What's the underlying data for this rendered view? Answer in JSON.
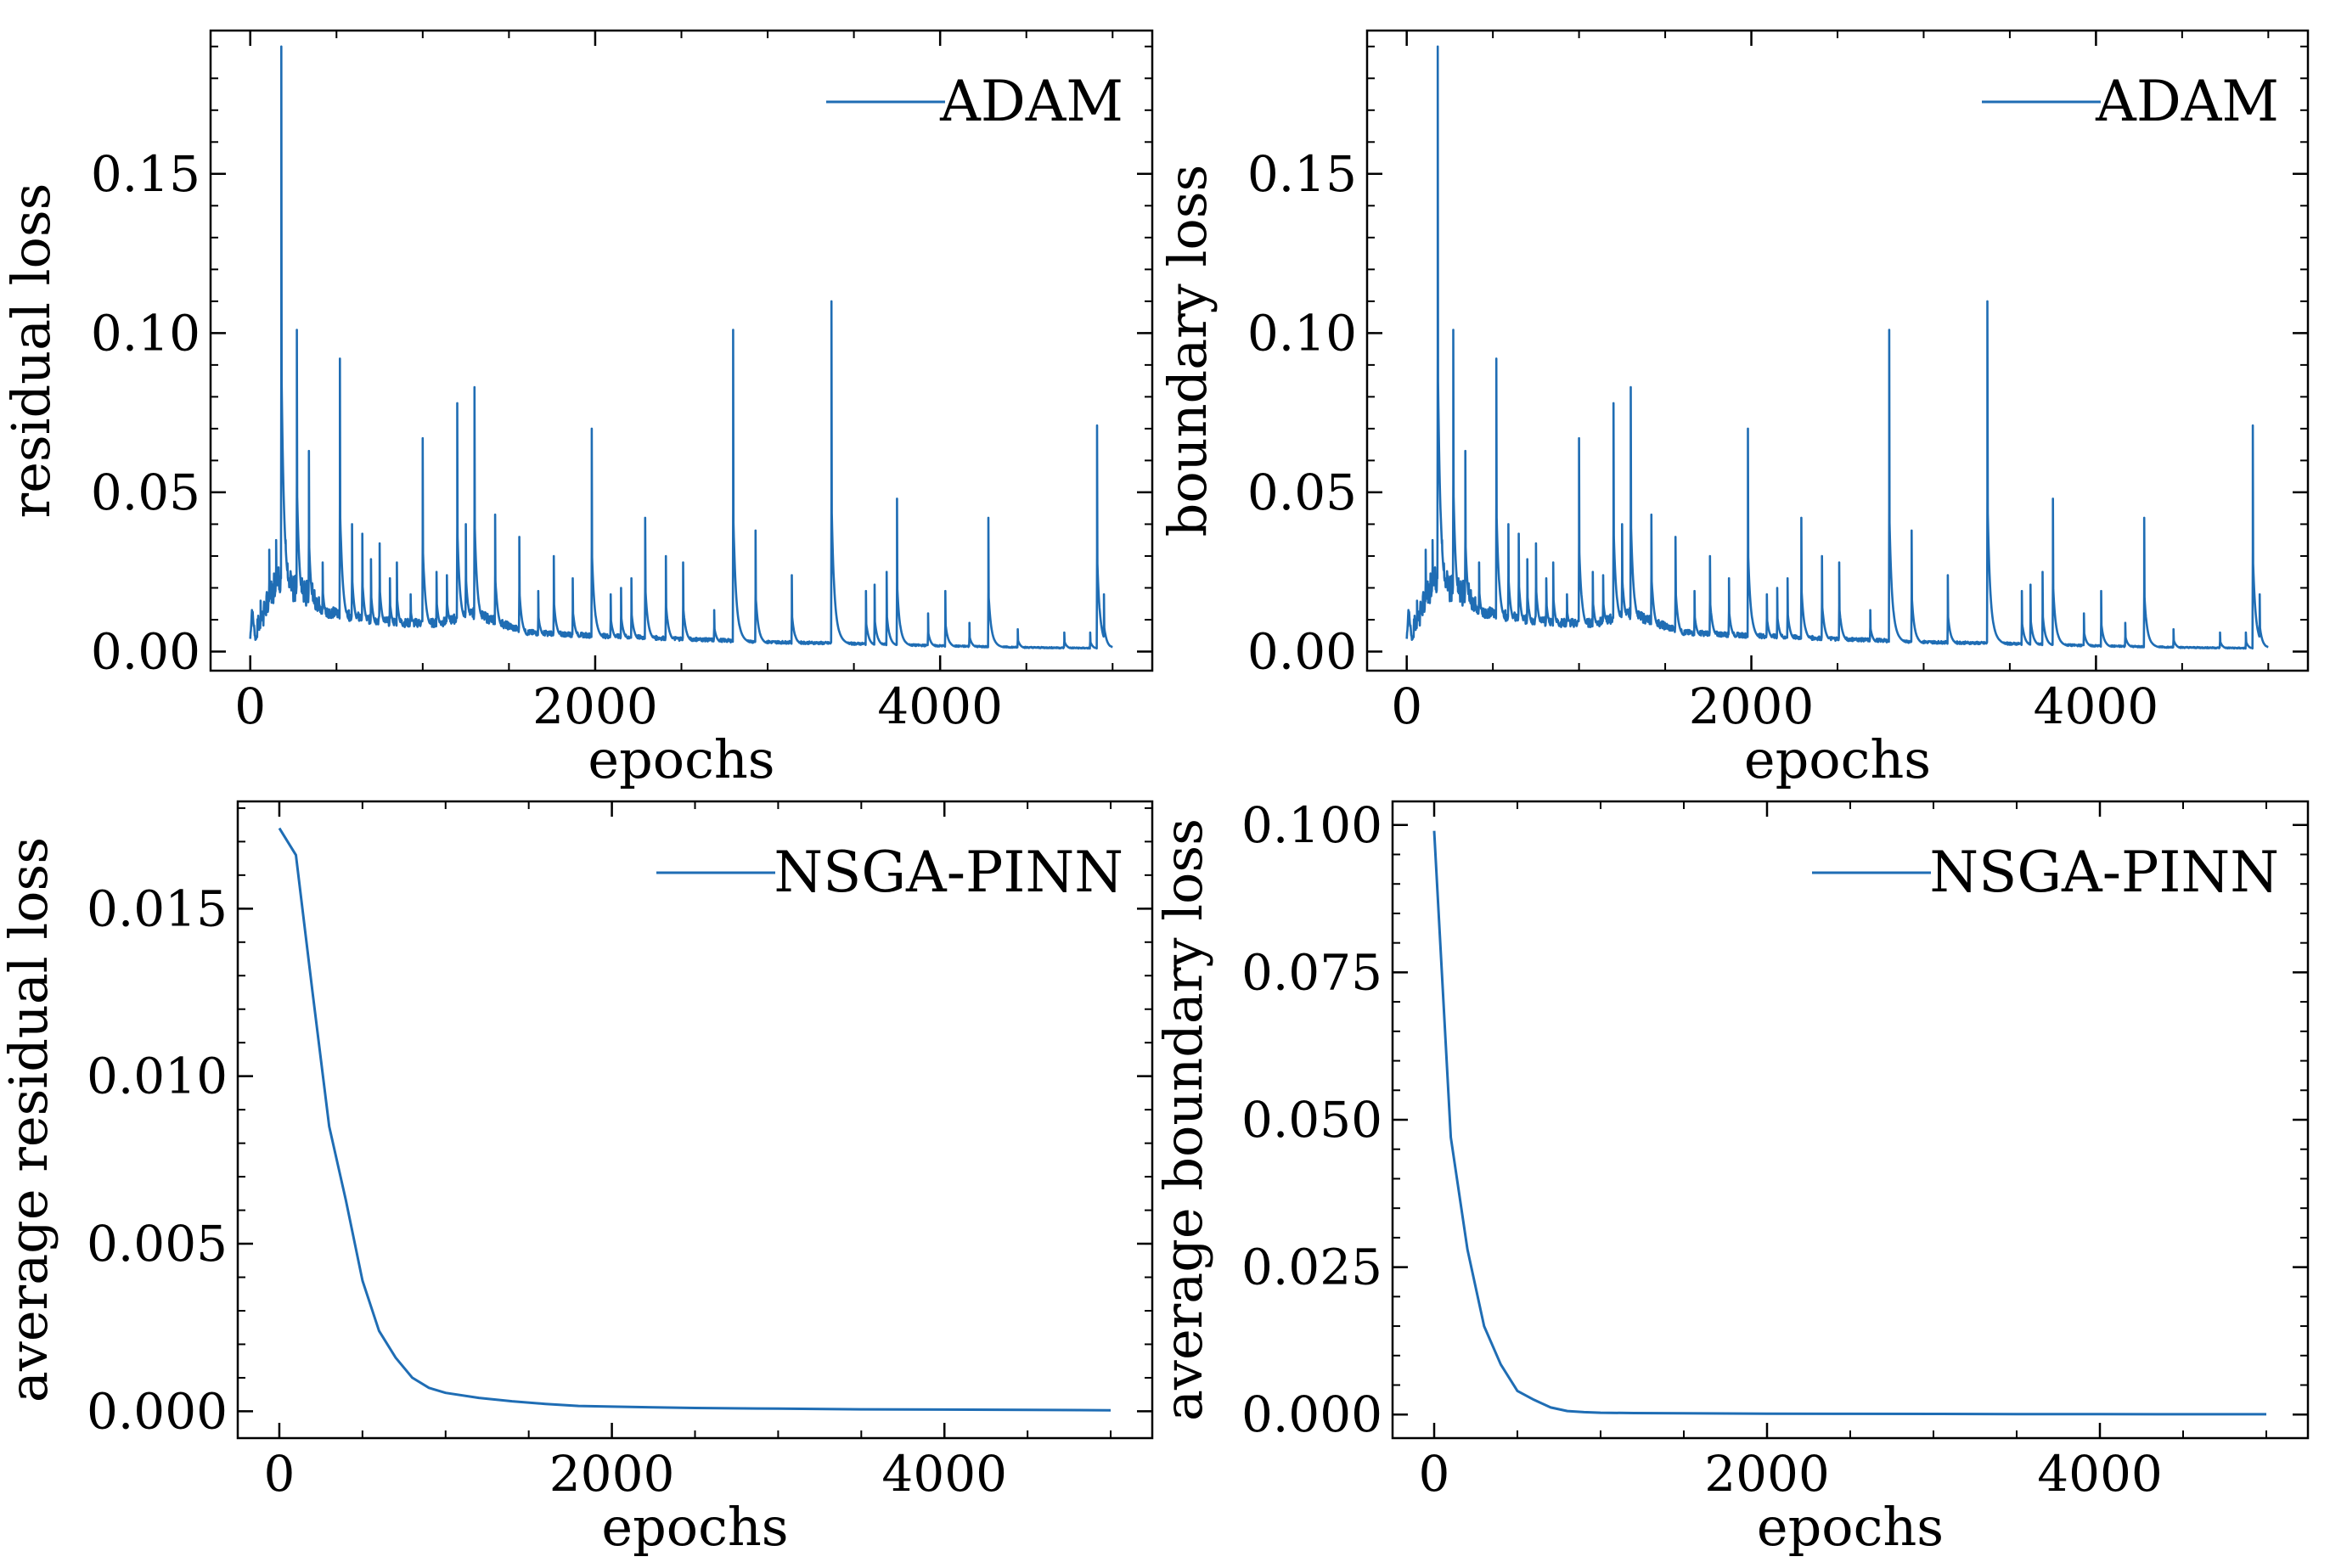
{
  "figure": {
    "colors": {
      "line": "#1f6db4",
      "axes": "#000000",
      "background": "#ffffff"
    }
  },
  "chart_data": [
    {
      "type": "line",
      "position": "top-left",
      "xlabel": "epochs",
      "ylabel": "residual loss",
      "xlim": [
        -230,
        5230
      ],
      "ylim": [
        -0.006,
        0.195
      ],
      "xticks": [
        0,
        2000,
        4000
      ],
      "xtick_labels": [
        "0",
        "2000",
        "4000"
      ],
      "yticks": [
        0.0,
        0.05,
        0.1,
        0.15
      ],
      "ytick_labels": [
        "0.00",
        "0.05",
        "0.10",
        "0.15"
      ],
      "legend": {
        "label": "ADAM",
        "loc": "upper right"
      },
      "series": [
        {
          "name": "ADAM",
          "x": [
            0,
            10,
            30,
            60,
            100,
            140,
            170,
            200,
            250,
            300,
            400,
            500,
            700,
            900,
            1100,
            1300,
            1400,
            1600,
            2000,
            2500,
            3000,
            3500,
            4000,
            4500,
            5000
          ],
          "values": [
            0.004,
            0.013,
            0.004,
            0.007,
            0.012,
            0.018,
            0.02,
            0.022,
            0.018,
            0.016,
            0.013,
            0.012,
            0.01,
            0.009,
            0.009,
            0.012,
            0.01,
            0.006,
            0.005,
            0.004,
            0.003,
            0.0025,
            0.0018,
            0.0013,
            0.001
          ],
          "spikes": [
            [
              60,
              0.016
            ],
            [
              110,
              0.032
            ],
            [
              150,
              0.035
            ],
            [
              180,
              0.19
            ],
            [
              205,
              0.035
            ],
            [
              270,
              0.101
            ],
            [
              300,
              0.023
            ],
            [
              340,
              0.063
            ],
            [
              420,
              0.028
            ],
            [
              520,
              0.092
            ],
            [
              590,
              0.04
            ],
            [
              650,
              0.037
            ],
            [
              700,
              0.029
            ],
            [
              750,
              0.034
            ],
            [
              810,
              0.023
            ],
            [
              850,
              0.028
            ],
            [
              930,
              0.018
            ],
            [
              1000,
              0.067
            ],
            [
              1080,
              0.025
            ],
            [
              1140,
              0.024
            ],
            [
              1200,
              0.078
            ],
            [
              1250,
              0.04
            ],
            [
              1300,
              0.083
            ],
            [
              1420,
              0.043
            ],
            [
              1560,
              0.036
            ],
            [
              1670,
              0.019
            ],
            [
              1760,
              0.03
            ],
            [
              1870,
              0.023
            ],
            [
              1980,
              0.07
            ],
            [
              2090,
              0.018
            ],
            [
              2150,
              0.02
            ],
            [
              2210,
              0.023
            ],
            [
              2290,
              0.042
            ],
            [
              2410,
              0.03
            ],
            [
              2510,
              0.028
            ],
            [
              2690,
              0.013
            ],
            [
              2800,
              0.101
            ],
            [
              2930,
              0.038
            ],
            [
              3140,
              0.024
            ],
            [
              3370,
              0.11
            ],
            [
              3570,
              0.019
            ],
            [
              3620,
              0.021
            ],
            [
              3690,
              0.025
            ],
            [
              3750,
              0.048
            ],
            [
              3930,
              0.012
            ],
            [
              4030,
              0.019
            ],
            [
              4170,
              0.009
            ],
            [
              4280,
              0.042
            ],
            [
              4450,
              0.007
            ],
            [
              4720,
              0.006
            ],
            [
              4870,
              0.006
            ],
            [
              4910,
              0.071
            ],
            [
              4950,
              0.018
            ]
          ]
        }
      ]
    },
    {
      "type": "line",
      "position": "top-right",
      "xlabel": "epochs",
      "ylabel": "boundary loss",
      "xlim": [
        -230,
        5230
      ],
      "ylim": [
        -0.006,
        0.195
      ],
      "xticks": [
        0,
        2000,
        4000
      ],
      "xtick_labels": [
        "0",
        "2000",
        "4000"
      ],
      "yticks": [
        0.0,
        0.05,
        0.1,
        0.15
      ],
      "ytick_labels": [
        "0.00",
        "0.05",
        "0.10",
        "0.15"
      ],
      "legend": {
        "label": "ADAM",
        "loc": "upper right"
      },
      "series": [
        {
          "name": "ADAM",
          "x": [
            0,
            10,
            30,
            60,
            100,
            140,
            170,
            200,
            250,
            300,
            400,
            500,
            700,
            900,
            1100,
            1300,
            1400,
            1600,
            2000,
            2500,
            3000,
            3500,
            4000,
            4500,
            5000
          ],
          "values": [
            0.004,
            0.013,
            0.004,
            0.007,
            0.012,
            0.018,
            0.02,
            0.022,
            0.018,
            0.016,
            0.013,
            0.012,
            0.01,
            0.009,
            0.009,
            0.012,
            0.01,
            0.006,
            0.005,
            0.004,
            0.003,
            0.0025,
            0.0018,
            0.0013,
            0.001
          ],
          "spikes": [
            [
              60,
              0.016
            ],
            [
              110,
              0.032
            ],
            [
              150,
              0.035
            ],
            [
              180,
              0.19
            ],
            [
              205,
              0.035
            ],
            [
              270,
              0.101
            ],
            [
              300,
              0.023
            ],
            [
              340,
              0.063
            ],
            [
              420,
              0.028
            ],
            [
              520,
              0.092
            ],
            [
              590,
              0.04
            ],
            [
              650,
              0.037
            ],
            [
              700,
              0.029
            ],
            [
              750,
              0.034
            ],
            [
              810,
              0.023
            ],
            [
              850,
              0.028
            ],
            [
              930,
              0.018
            ],
            [
              1000,
              0.067
            ],
            [
              1080,
              0.025
            ],
            [
              1140,
              0.024
            ],
            [
              1200,
              0.078
            ],
            [
              1250,
              0.04
            ],
            [
              1300,
              0.083
            ],
            [
              1420,
              0.043
            ],
            [
              1560,
              0.036
            ],
            [
              1670,
              0.019
            ],
            [
              1760,
              0.03
            ],
            [
              1870,
              0.023
            ],
            [
              1980,
              0.07
            ],
            [
              2090,
              0.018
            ],
            [
              2150,
              0.02
            ],
            [
              2210,
              0.023
            ],
            [
              2290,
              0.042
            ],
            [
              2410,
              0.03
            ],
            [
              2510,
              0.028
            ],
            [
              2690,
              0.013
            ],
            [
              2800,
              0.101
            ],
            [
              2930,
              0.038
            ],
            [
              3140,
              0.024
            ],
            [
              3370,
              0.11
            ],
            [
              3570,
              0.019
            ],
            [
              3620,
              0.021
            ],
            [
              3690,
              0.025
            ],
            [
              3750,
              0.048
            ],
            [
              3930,
              0.012
            ],
            [
              4030,
              0.019
            ],
            [
              4170,
              0.009
            ],
            [
              4280,
              0.042
            ],
            [
              4450,
              0.007
            ],
            [
              4720,
              0.006
            ],
            [
              4870,
              0.006
            ],
            [
              4910,
              0.071
            ],
            [
              4950,
              0.018
            ]
          ]
        }
      ]
    },
    {
      "type": "line",
      "position": "bottom-left",
      "xlabel": "epochs",
      "ylabel": "average residual loss",
      "xlim": [
        -250,
        5250
      ],
      "ylim": [
        -0.0008,
        0.0182
      ],
      "xticks": [
        0,
        2000,
        4000
      ],
      "xtick_labels": [
        "0",
        "2000",
        "4000"
      ],
      "yticks": [
        0.0,
        0.005,
        0.01,
        0.015
      ],
      "ytick_labels": [
        "0.000",
        "0.005",
        "0.010",
        "0.015"
      ],
      "legend": {
        "label": "NSGA-PINN",
        "loc": "upper right"
      },
      "series": [
        {
          "name": "NSGA-PINN",
          "x": [
            0,
            100,
            200,
            300,
            400,
            500,
            600,
            700,
            800,
            900,
            1000,
            1200,
            1400,
            1600,
            1800,
            2000,
            2500,
            3000,
            3500,
            4000,
            4500,
            5000
          ],
          "values": [
            0.0174,
            0.0166,
            0.0125,
            0.0085,
            0.0063,
            0.0039,
            0.0024,
            0.0016,
            0.001,
            0.0007,
            0.00055,
            0.0004,
            0.0003,
            0.00022,
            0.00016,
            0.00014,
            0.0001,
            8e-05,
            6e-05,
            5e-05,
            4e-05,
            3e-05
          ]
        }
      ]
    },
    {
      "type": "line",
      "position": "bottom-right",
      "xlabel": "epochs",
      "ylabel": "average boundary loss",
      "xlim": [
        -250,
        5250
      ],
      "ylim": [
        -0.004,
        0.104
      ],
      "xticks": [
        0,
        2000,
        4000
      ],
      "xtick_labels": [
        "0",
        "2000",
        "4000"
      ],
      "yticks": [
        0.0,
        0.025,
        0.05,
        0.075,
        0.1
      ],
      "ytick_labels": [
        "0.000",
        "0.025",
        "0.050",
        "0.075",
        "0.100"
      ],
      "legend": {
        "label": "NSGA-PINN",
        "loc": "upper right"
      },
      "series": [
        {
          "name": "NSGA-PINN",
          "x": [
            0,
            100,
            200,
            300,
            400,
            500,
            600,
            700,
            800,
            900,
            1000,
            1200,
            1500,
            2000,
            2500,
            3000,
            3500,
            4000,
            4500,
            5000
          ],
          "values": [
            0.099,
            0.047,
            0.028,
            0.015,
            0.0085,
            0.004,
            0.0025,
            0.0012,
            0.0006,
            0.0004,
            0.0003,
            0.00025,
            0.0002,
            0.00015,
            0.00012,
            0.0001,
            8e-05,
            6e-05,
            5e-05,
            4e-05
          ]
        }
      ]
    }
  ]
}
